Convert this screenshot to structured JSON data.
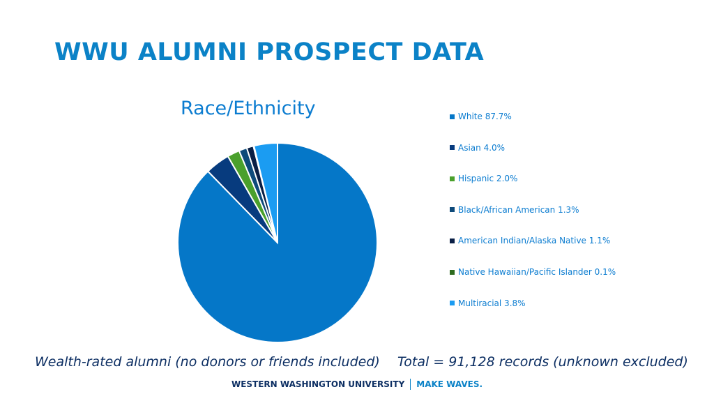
{
  "slide": {
    "title": "WWU ALUMNI PROSPECT DATA",
    "footnote_left": "Wealth-rated alumni (no donors or friends included)",
    "footnote_right": "Total = 91,128 records (unknown excluded)"
  },
  "footer": {
    "university": "WESTERN WASHINGTON UNIVERSITY",
    "tagline": "MAKE WAVES."
  },
  "chart_data": {
    "type": "pie",
    "title": "Race/Ethnicity",
    "legend_position": "right",
    "slices": [
      {
        "label": "White 87.7%",
        "value": 87.7,
        "color": "#0577c8"
      },
      {
        "label": "Asian 4.0%",
        "value": 4.0,
        "color": "#073b7e"
      },
      {
        "label": "Hispanic 2.0%",
        "value": 2.0,
        "color": "#4aa02c"
      },
      {
        "label": "Black/African American 1.3%",
        "value": 1.3,
        "color": "#0e4a7a"
      },
      {
        "label": "American Indian/Alaska Native 1.1%",
        "value": 1.1,
        "color": "#0a1f45"
      },
      {
        "label": "Native Hawaiian/Pacific Islander 0.1%",
        "value": 0.1,
        "color": "#2e6b1f"
      },
      {
        "label": "Multiracial 3.8%",
        "value": 3.8,
        "color": "#1b9cf2"
      }
    ]
  }
}
